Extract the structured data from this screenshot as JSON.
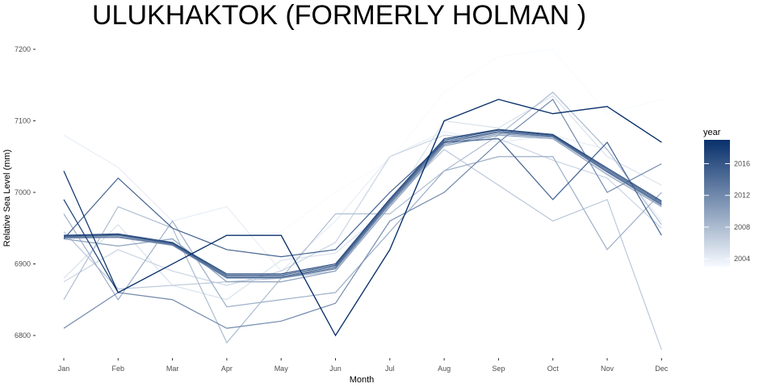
{
  "chart_data": {
    "type": "line",
    "title": "ULUKHAKTOK (FORMERLY HOLMAN )",
    "xlabel": "Month",
    "ylabel": "Relative Sea Level (mm)",
    "categories": [
      "Jan",
      "Feb",
      "Mar",
      "Apr",
      "May",
      "Jun",
      "Jul",
      "Aug",
      "Sep",
      "Oct",
      "Nov",
      "Dec"
    ],
    "yticks": [
      6800,
      6900,
      7000,
      7100,
      7200
    ],
    "ylim": [
      6780,
      7205
    ],
    "grid": false,
    "legend": {
      "title": "year",
      "placement": "right",
      "ticks": [
        2004,
        2008,
        2012,
        2016
      ],
      "range": [
        2003,
        2019
      ],
      "color_low": "#f7fbff",
      "color_high": "#08306b"
    },
    "series": [
      {
        "year": 2003,
        "values": [
          6945,
          6940,
          6935,
          6935,
          6945,
          7000,
          7045,
          7140,
          7190,
          7200,
          7110,
          7130
        ]
      },
      {
        "year": 2004,
        "values": [
          7080,
          7035,
          6960,
          6980,
          6890,
          6960,
          7050,
          7085,
          7070,
          7080,
          7060,
          6960
        ]
      },
      {
        "year": 2005,
        "values": [
          6880,
          6955,
          6870,
          6850,
          6905,
          6915,
          6980,
          7100,
          7090,
          7135,
          7050,
          7010
        ]
      },
      {
        "year": 2006,
        "values": [
          6875,
          6920,
          6890,
          6870,
          6890,
          6930,
          7050,
          7080,
          7075,
          7045,
          7020,
          6950
        ]
      },
      {
        "year": 2007,
        "values": [
          6945,
          6865,
          6870,
          6875,
          6880,
          6890,
          6985,
          7060,
          7010,
          6960,
          6990,
          6780
        ]
      },
      {
        "year": 2008,
        "values": [
          6850,
          6980,
          6950,
          6790,
          6880,
          6970,
          6970,
          7030,
          7080,
          7140,
          7060,
          6955
        ]
      },
      {
        "year": 2009,
        "values": [
          6970,
          6850,
          6960,
          6840,
          6850,
          6860,
          6945,
          7030,
          7050,
          7050,
          6920,
          7000
        ]
      },
      {
        "year": 2010,
        "values": [
          6935,
          6925,
          6935,
          6875,
          6875,
          6890,
          6980,
          7065,
          7080,
          7075,
          7025,
          6980
        ]
      },
      {
        "year": 2011,
        "values": [
          6936,
          6937,
          6926,
          6880,
          6880,
          6893,
          6983,
          7067,
          7082,
          7077,
          7028,
          6982
        ]
      },
      {
        "year": 2012,
        "values": [
          6810,
          6860,
          6850,
          6810,
          6820,
          6845,
          6960,
          7000,
          7070,
          7130,
          7000,
          7040
        ]
      },
      {
        "year": 2013,
        "values": [
          6937,
          6938,
          6927,
          6881,
          6881,
          6894,
          6985,
          7069,
          7084,
          7078,
          7029,
          6983
        ]
      },
      {
        "year": 2014,
        "values": [
          6938,
          6940,
          6928,
          6882,
          6882,
          6896,
          6987,
          7071,
          7085,
          7079,
          7030,
          6984
        ]
      },
      {
        "year": 2015,
        "values": [
          6935,
          7020,
          6950,
          6920,
          6910,
          6920,
          7000,
          7070,
          7075,
          6990,
          7070,
          6940
        ]
      },
      {
        "year": 2016,
        "values": [
          6939,
          6941,
          6929,
          6884,
          6884,
          6898,
          6989,
          7073,
          7087,
          7080,
          7032,
          6986
        ]
      },
      {
        "year": 2017,
        "values": [
          6940,
          6942,
          6930,
          6886,
          6886,
          6900,
          6991,
          7075,
          7088,
          7081,
          7034,
          6988
        ]
      },
      {
        "year": 2018,
        "values": [
          6990,
          6860,
          6900,
          6940,
          6940,
          6800,
          6920,
          7100,
          7130,
          7110,
          7120,
          7070
        ]
      },
      {
        "year": 2019,
        "values": [
          7030,
          6860,
          6900,
          6940,
          6940,
          6800,
          6920,
          7100,
          7130,
          7110,
          7120,
          7070
        ]
      }
    ]
  }
}
